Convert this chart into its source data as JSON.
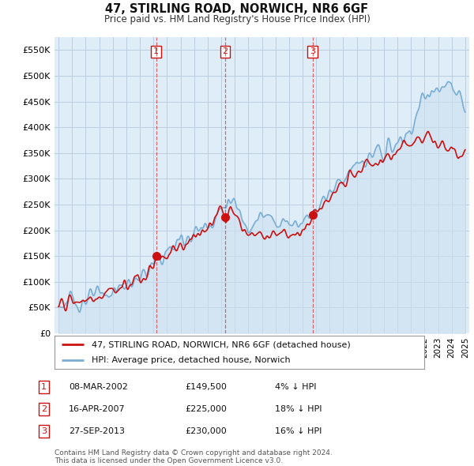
{
  "title": "47, STIRLING ROAD, NORWICH, NR6 6GF",
  "subtitle": "Price paid vs. HM Land Registry's House Price Index (HPI)",
  "ylabel_ticks": [
    "£0",
    "£50K",
    "£100K",
    "£150K",
    "£200K",
    "£250K",
    "£300K",
    "£350K",
    "£400K",
    "£450K",
    "£500K",
    "£550K"
  ],
  "ytick_values": [
    0,
    50000,
    100000,
    150000,
    200000,
    250000,
    300000,
    350000,
    400000,
    450000,
    500000,
    550000
  ],
  "hpi_color": "#7aaed4",
  "hpi_fill_color": "#cce0f0",
  "price_color": "#cc1111",
  "vline_color": "#cc1111",
  "marker_color": "#cc1111",
  "bg_color": "#ffffff",
  "chart_bg_color": "#deedf7",
  "grid_color": "#bbccdd",
  "transactions": [
    {
      "num": 1,
      "date": "08-MAR-2002",
      "price": 149500,
      "pct": "4%",
      "dir": "↓",
      "x_year": 2002.19
    },
    {
      "num": 2,
      "date": "16-APR-2007",
      "price": 225000,
      "pct": "18%",
      "dir": "↓",
      "x_year": 2007.29
    },
    {
      "num": 3,
      "date": "27-SEP-2013",
      "price": 230000,
      "pct": "16%",
      "dir": "↓",
      "x_year": 2013.74
    }
  ],
  "legend_label_price": "47, STIRLING ROAD, NORWICH, NR6 6GF (detached house)",
  "legend_label_hpi": "HPI: Average price, detached house, Norwich",
  "footer": "Contains HM Land Registry data © Crown copyright and database right 2024.\nThis data is licensed under the Open Government Licence v3.0.",
  "xlim": [
    1994.7,
    2025.3
  ],
  "ylim": [
    0,
    575000
  ],
  "hpi_keypoints": [
    [
      1995.0,
      56000
    ],
    [
      1996.0,
      60000
    ],
    [
      1997.0,
      66000
    ],
    [
      1998.0,
      72000
    ],
    [
      1999.0,
      82000
    ],
    [
      2000.0,
      94000
    ],
    [
      2001.0,
      108000
    ],
    [
      2002.0,
      128000
    ],
    [
      2003.0,
      158000
    ],
    [
      2004.0,
      182000
    ],
    [
      2005.0,
      195000
    ],
    [
      2006.0,
      212000
    ],
    [
      2007.0,
      240000
    ],
    [
      2007.5,
      258000
    ],
    [
      2008.0,
      248000
    ],
    [
      2008.5,
      225000
    ],
    [
      2009.0,
      215000
    ],
    [
      2010.0,
      225000
    ],
    [
      2011.0,
      220000
    ],
    [
      2012.0,
      215000
    ],
    [
      2013.0,
      222000
    ],
    [
      2013.5,
      230000
    ],
    [
      2014.0,
      245000
    ],
    [
      2015.0,
      275000
    ],
    [
      2016.0,
      305000
    ],
    [
      2017.0,
      325000
    ],
    [
      2018.0,
      340000
    ],
    [
      2019.0,
      355000
    ],
    [
      2020.0,
      365000
    ],
    [
      2021.0,
      395000
    ],
    [
      2021.5,
      430000
    ],
    [
      2022.0,
      460000
    ],
    [
      2022.5,
      475000
    ],
    [
      2023.0,
      468000
    ],
    [
      2023.5,
      472000
    ],
    [
      2024.0,
      480000
    ],
    [
      2024.5,
      455000
    ],
    [
      2025.0,
      440000
    ]
  ],
  "price_keypoints": [
    [
      1995.0,
      54000
    ],
    [
      1996.0,
      58000
    ],
    [
      1997.0,
      64000
    ],
    [
      1998.0,
      70000
    ],
    [
      1999.0,
      79000
    ],
    [
      2000.0,
      90000
    ],
    [
      2001.0,
      103000
    ],
    [
      2002.0,
      125000
    ],
    [
      2002.19,
      149500
    ],
    [
      2003.0,
      155000
    ],
    [
      2004.0,
      175000
    ],
    [
      2005.0,
      188000
    ],
    [
      2006.0,
      200000
    ],
    [
      2007.0,
      235000
    ],
    [
      2007.29,
      225000
    ],
    [
      2007.7,
      248000
    ],
    [
      2008.0,
      230000
    ],
    [
      2008.5,
      205000
    ],
    [
      2009.0,
      190000
    ],
    [
      2009.5,
      185000
    ],
    [
      2010.0,
      195000
    ],
    [
      2010.5,
      190000
    ],
    [
      2011.0,
      192000
    ],
    [
      2011.5,
      195000
    ],
    [
      2012.0,
      190000
    ],
    [
      2012.5,
      195000
    ],
    [
      2013.0,
      200000
    ],
    [
      2013.74,
      230000
    ],
    [
      2014.0,
      240000
    ],
    [
      2015.0,
      265000
    ],
    [
      2016.0,
      290000
    ],
    [
      2017.0,
      310000
    ],
    [
      2018.0,
      325000
    ],
    [
      2018.5,
      330000
    ],
    [
      2019.0,
      340000
    ],
    [
      2020.0,
      350000
    ],
    [
      2021.0,
      370000
    ],
    [
      2021.5,
      375000
    ],
    [
      2022.0,
      385000
    ],
    [
      2022.3,
      390000
    ],
    [
      2022.7,
      378000
    ],
    [
      2023.0,
      370000
    ],
    [
      2023.5,
      365000
    ],
    [
      2024.0,
      360000
    ],
    [
      2024.5,
      348000
    ],
    [
      2025.0,
      345000
    ]
  ]
}
